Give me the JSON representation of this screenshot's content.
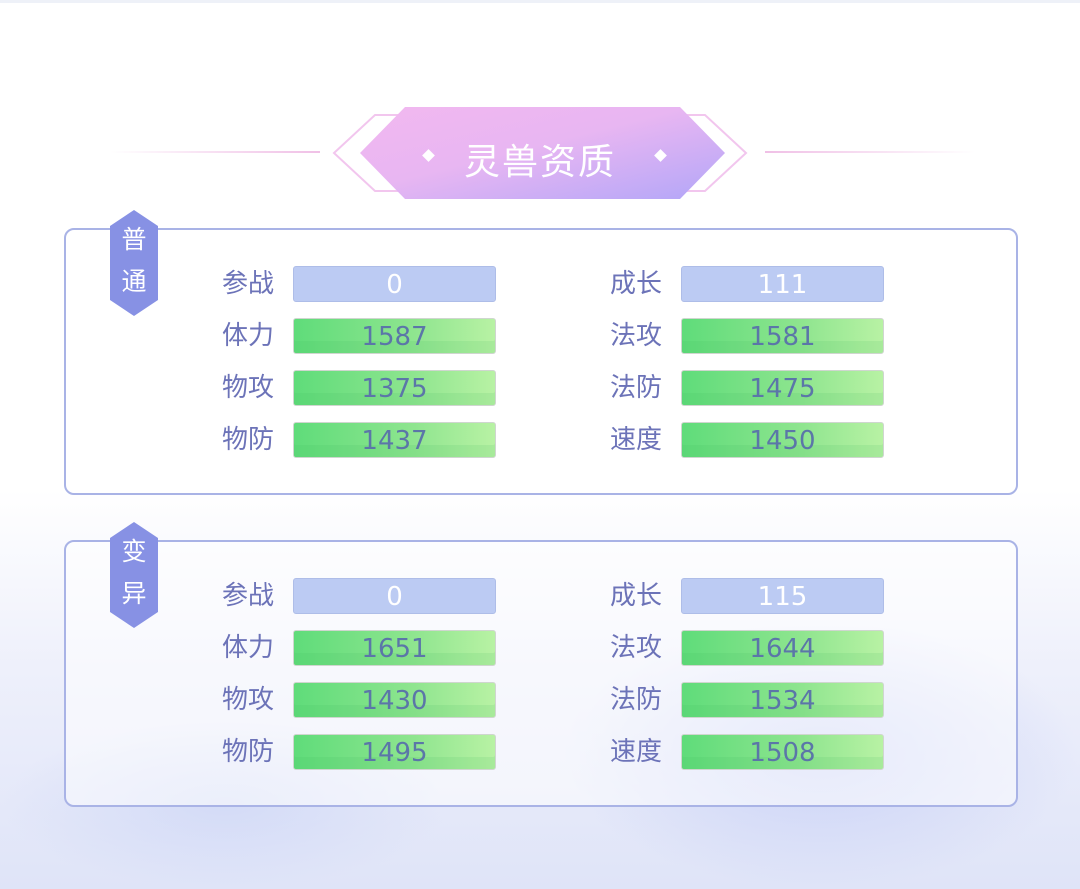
{
  "title": "灵兽资质",
  "colors": {
    "title_gradient_start": "#f0b8f0",
    "title_gradient_end": "#b4a8f8",
    "panel_border": "#a9b3e6",
    "badge": "#8791e4",
    "label": "#6c73b8",
    "bar_blue": "#bccbf3",
    "bar_green": "#6fe07e"
  },
  "sections": [
    {
      "badge": "普通",
      "left": [
        {
          "label": "参战",
          "value": "0",
          "style": "blue"
        },
        {
          "label": "体力",
          "value": "1587",
          "style": "green"
        },
        {
          "label": "物攻",
          "value": "1375",
          "style": "green"
        },
        {
          "label": "物防",
          "value": "1437",
          "style": "green"
        }
      ],
      "right": [
        {
          "label": "成长",
          "value": "111",
          "style": "blue"
        },
        {
          "label": "法攻",
          "value": "1581",
          "style": "green"
        },
        {
          "label": "法防",
          "value": "1475",
          "style": "green"
        },
        {
          "label": "速度",
          "value": "1450",
          "style": "green"
        }
      ]
    },
    {
      "badge": "变异",
      "left": [
        {
          "label": "参战",
          "value": "0",
          "style": "blue"
        },
        {
          "label": "体力",
          "value": "1651",
          "style": "green"
        },
        {
          "label": "物攻",
          "value": "1430",
          "style": "green"
        },
        {
          "label": "物防",
          "value": "1495",
          "style": "green"
        }
      ],
      "right": [
        {
          "label": "成长",
          "value": "115",
          "style": "blue"
        },
        {
          "label": "法攻",
          "value": "1644",
          "style": "green"
        },
        {
          "label": "法防",
          "value": "1534",
          "style": "green"
        },
        {
          "label": "速度",
          "value": "1508",
          "style": "green"
        }
      ]
    }
  ]
}
